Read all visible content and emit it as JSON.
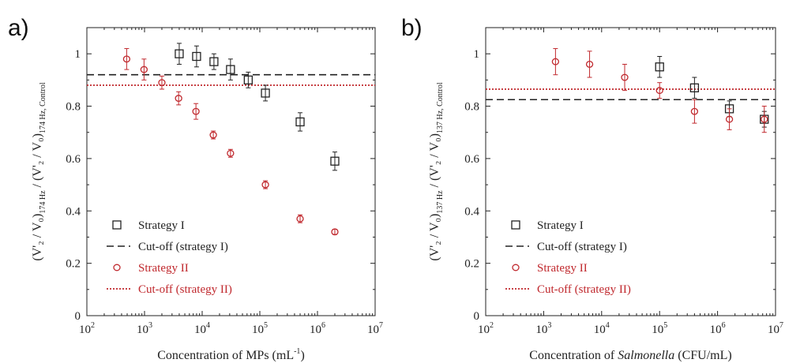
{
  "colors": {
    "strategy1": "#222222",
    "strategy2": "#c0282d",
    "axis": "#222222"
  },
  "chart_data": [
    {
      "type": "scatter",
      "panel_label": "a)",
      "x_scale": "log",
      "xlim": [
        100,
        10000000
      ],
      "ylim": [
        0,
        1.1
      ],
      "x_ticks": [
        {
          "base": "10",
          "exp": "2"
        },
        {
          "base": "10",
          "exp": "3"
        },
        {
          "base": "10",
          "exp": "4"
        },
        {
          "base": "10",
          "exp": "5"
        },
        {
          "base": "10",
          "exp": "6"
        },
        {
          "base": "10",
          "exp": "7"
        }
      ],
      "y_ticks": [
        "0",
        "0.2",
        "0.4",
        "0.6",
        "0.8",
        "1"
      ],
      "xlabel": {
        "pre": "Concentration of MPs (mL",
        "sup": "-1",
        "post": ")"
      },
      "ylabel": {
        "main": "(V'₂ / V₀)",
        "sub1": "174 Hz",
        "mid": " / (V'₂ / V₀)",
        "sub2": "174 Hz, Control"
      },
      "series": [
        {
          "name": "Strategy I",
          "marker": "square",
          "color": "#222222",
          "x": [
            4000,
            8000,
            16000,
            31000,
            63000,
            125000,
            500000,
            2000000
          ],
          "y": [
            1.0,
            0.99,
            0.97,
            0.94,
            0.9,
            0.85,
            0.74,
            0.59
          ],
          "err": [
            0.04,
            0.04,
            0.03,
            0.04,
            0.03,
            0.03,
            0.035,
            0.035
          ]
        },
        {
          "name": "Strategy II",
          "marker": "circle",
          "color": "#c0282d",
          "x": [
            490,
            980,
            2000,
            3900,
            7800,
            15600,
            31000,
            125000,
            500000,
            2000000
          ],
          "y": [
            0.98,
            0.94,
            0.89,
            0.83,
            0.78,
            0.69,
            0.62,
            0.5,
            0.37,
            0.32
          ],
          "err": [
            0.04,
            0.04,
            0.025,
            0.025,
            0.03,
            0.015,
            0.015,
            0.015,
            0.015,
            0.01
          ]
        }
      ],
      "cutoffs": [
        {
          "name": "Cut-off (strategy I)",
          "y": 0.92,
          "style": "dashed",
          "color": "#222222"
        },
        {
          "name": "Cut-off (strategy II)",
          "y": 0.88,
          "style": "dotted",
          "color": "#c0282d"
        }
      ],
      "legend": "bottom-left"
    },
    {
      "type": "scatter",
      "panel_label": "b)",
      "x_scale": "log",
      "xlim": [
        100,
        10000000
      ],
      "ylim": [
        0,
        1.1
      ],
      "x_ticks": [
        {
          "base": "10",
          "exp": "2"
        },
        {
          "base": "10",
          "exp": "3"
        },
        {
          "base": "10",
          "exp": "4"
        },
        {
          "base": "10",
          "exp": "5"
        },
        {
          "base": "10",
          "exp": "6"
        },
        {
          "base": "10",
          "exp": "7"
        }
      ],
      "y_ticks": [
        "0",
        "0.2",
        "0.4",
        "0.6",
        "0.8",
        "1"
      ],
      "xlabel": {
        "pre": "Concentration of ",
        "italic": "Salmonella",
        "post": " (CFU/mL)"
      },
      "ylabel": {
        "main": "(V'₂ / V₀)",
        "sub1": "137 Hz",
        "mid": " / (V'₂ / V₀)",
        "sub2": "137 Hz, Control"
      },
      "series": [
        {
          "name": "Strategy I",
          "marker": "square",
          "color": "#222222",
          "x": [
            100000,
            400000,
            1600000,
            6400000
          ],
          "y": [
            0.95,
            0.87,
            0.79,
            0.75
          ],
          "err": [
            0.04,
            0.04,
            0.03,
            0.03
          ]
        },
        {
          "name": "Strategy II",
          "marker": "circle",
          "color": "#c0282d",
          "x": [
            1600,
            6200,
            25000,
            100000,
            400000,
            1600000,
            6400000
          ],
          "y": [
            0.97,
            0.96,
            0.91,
            0.86,
            0.78,
            0.75,
            0.75
          ],
          "err": [
            0.05,
            0.05,
            0.05,
            0.03,
            0.045,
            0.04,
            0.05
          ]
        }
      ],
      "cutoffs": [
        {
          "name": "Cut-off (strategy I)",
          "y": 0.825,
          "style": "dashed",
          "color": "#222222"
        },
        {
          "name": "Cut-off (strategy II)",
          "y": 0.865,
          "style": "dotted",
          "color": "#c0282d"
        }
      ],
      "legend": "bottom-left"
    }
  ]
}
